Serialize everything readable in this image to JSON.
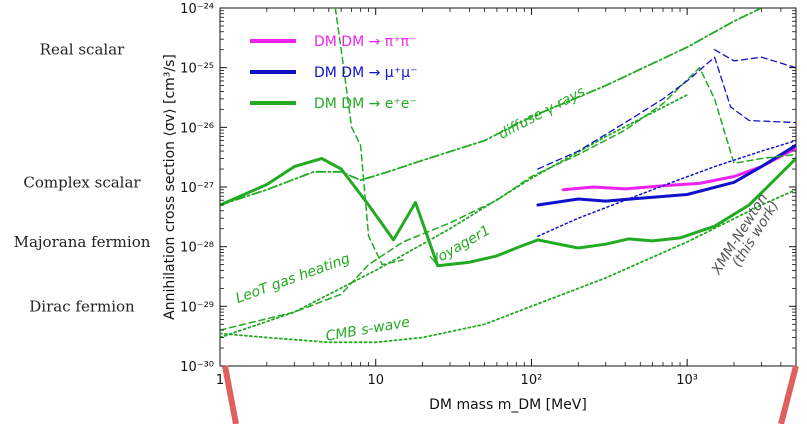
{
  "chart_data": {
    "type": "line",
    "xlabel": "DM mass m_DM [MeV]",
    "ylabel": "Annihilation cross section ⟨σv⟩ [cm³/s]",
    "x_scale": "log",
    "y_scale": "log",
    "xlim": [
      1,
      5000
    ],
    "ylim": [
      1e-30,
      1e-24
    ],
    "x_ticks": [
      {
        "v": 1,
        "label": "1"
      },
      {
        "v": 10,
        "label": "10"
      },
      {
        "v": 100,
        "label": "10²"
      },
      {
        "v": 1000,
        "label": "10³"
      }
    ],
    "y_ticks": [
      {
        "v": 1e-30,
        "label": "10⁻³⁰"
      },
      {
        "v": 1e-29,
        "label": "10⁻²⁹"
      },
      {
        "v": 1e-28,
        "label": "10⁻²⁸"
      },
      {
        "v": 1e-27,
        "label": "10⁻²⁷"
      },
      {
        "v": 1e-26,
        "label": "10⁻²⁶"
      },
      {
        "v": 1e-25,
        "label": "10⁻²⁵"
      },
      {
        "v": 1e-24,
        "label": "10⁻²⁴"
      }
    ],
    "side_labels": [
      {
        "text": "Real scalar",
        "y": 2e-25
      },
      {
        "text": "Complex scalar",
        "y": 1.2e-27
      },
      {
        "text": "Majorana fermion",
        "y": 1.2e-28
      },
      {
        "text": "Dirac fermion",
        "y": 1e-29
      }
    ],
    "legend": [
      {
        "text": "DM DM → π⁺π⁻",
        "color": "#ee22ee"
      },
      {
        "text": "DM DM → μ⁺μ⁻",
        "color": "#1111cc"
      },
      {
        "text": "DM DM → e⁺e⁻",
        "color": "#22aa22"
      }
    ],
    "annotations": [
      {
        "text": "diffuse γ-rays",
        "color": "#22aa22",
        "x": 120,
        "y": 1.5e-26,
        "angle": -28
      },
      {
        "text": "Voyager1",
        "color": "#22aa22",
        "x": 36,
        "y": 9e-29,
        "angle": -30
      },
      {
        "text": "LeoT gas heating",
        "color": "#22aa22",
        "x": 3,
        "y": 2.5e-29,
        "angle": -20
      },
      {
        "text": "CMB s-wave",
        "color": "#22aa22",
        "x": 9,
        "y": 3.5e-30,
        "angle": -10
      },
      {
        "text": "XMM-Newton",
        "color": "#555555",
        "x": 2300,
        "y": 1.5e-28,
        "angle": -58
      },
      {
        "text": "(this work)",
        "color": "#555555",
        "x": 2900,
        "y": 1.5e-28,
        "angle": -58
      }
    ],
    "series": [
      {
        "name": "DM DM → π⁺π⁻",
        "color": "#ee22ee",
        "style": "solid",
        "width": 3,
        "points": [
          [
            160,
            9e-28
          ],
          [
            250,
            1e-27
          ],
          [
            400,
            9.3e-28
          ],
          [
            700,
            1.05e-27
          ],
          [
            1200,
            1.15e-27
          ],
          [
            2000,
            1.5e-27
          ],
          [
            3000,
            2.2e-27
          ],
          [
            5000,
            4.5e-27
          ]
        ]
      },
      {
        "name": "DM DM → μ⁺μ⁻",
        "color": "#1111cc",
        "style": "solid",
        "width": 3,
        "points": [
          [
            110,
            5e-28
          ],
          [
            200,
            6.3e-28
          ],
          [
            300,
            5.8e-28
          ],
          [
            500,
            6.5e-28
          ],
          [
            1000,
            7.5e-28
          ],
          [
            2000,
            1.2e-27
          ],
          [
            3000,
            2.2e-27
          ],
          [
            5000,
            5e-27
          ]
        ]
      },
      {
        "name": "DM DM → e⁺e⁻",
        "color": "#22aa22",
        "style": "solid",
        "width": 3,
        "points": [
          [
            1,
            5e-28
          ],
          [
            2,
            1.1e-27
          ],
          [
            3,
            2.2e-27
          ],
          [
            4.5,
            3e-27
          ],
          [
            6,
            2e-27
          ],
          [
            9,
            5e-28
          ],
          [
            13,
            1.3e-28
          ],
          [
            18,
            5.5e-28
          ],
          [
            25,
            4.8e-29
          ],
          [
            40,
            5.5e-29
          ],
          [
            60,
            7e-29
          ],
          [
            80,
            9.5e-29
          ],
          [
            110,
            1.3e-28
          ],
          [
            150,
            1.1e-28
          ],
          [
            200,
            9.5e-29
          ],
          [
            300,
            1.1e-28
          ],
          [
            420,
            1.35e-28
          ],
          [
            600,
            1.25e-28
          ],
          [
            900,
            1.4e-28
          ],
          [
            1500,
            2.2e-28
          ],
          [
            2500,
            5e-28
          ],
          [
            5000,
            3e-27
          ]
        ]
      },
      {
        "name": "",
        "color": "#22aa22",
        "style": "dashdot",
        "width": 1.8,
        "points": [
          [
            1,
            5e-28
          ],
          [
            2,
            9e-28
          ],
          [
            4,
            1.8e-27
          ],
          [
            6,
            1.8e-27
          ],
          [
            8,
            1.3e-27
          ],
          [
            12,
            1.8e-27
          ],
          [
            20,
            2.8e-27
          ],
          [
            50,
            6e-27
          ],
          [
            100,
            1.5e-26
          ],
          [
            300,
            5e-26
          ],
          [
            1000,
            2.2e-25
          ],
          [
            2000,
            6e-25
          ],
          [
            3000,
            1e-24
          ]
        ]
      },
      {
        "name": "",
        "color": "#22aa22",
        "style": "dashed",
        "width": 1.5,
        "points": [
          [
            1,
            4e-30
          ],
          [
            3,
            8e-30
          ],
          [
            6,
            1.6e-29
          ],
          [
            9,
            5e-29
          ],
          [
            15,
            1.2e-28
          ],
          [
            30,
            2.5e-28
          ],
          [
            60,
            6e-28
          ],
          [
            100,
            1.5e-27
          ],
          [
            200,
            3.5e-27
          ],
          [
            400,
            9e-27
          ],
          [
            700,
            2.5e-26
          ],
          [
            1200,
            1e-25
          ],
          [
            1500,
            3e-26
          ],
          [
            2000,
            2.5e-27
          ],
          [
            3000,
            3e-27
          ],
          [
            5000,
            3.5e-27
          ]
        ]
      },
      {
        "name": "",
        "color": "#22aa22",
        "style": "dashed",
        "width": 1.5,
        "points": [
          [
            5.5,
            1e-24
          ],
          [
            6,
            2e-25
          ],
          [
            7,
            1e-26
          ],
          [
            8,
            5e-27
          ],
          [
            9,
            1.5e-28
          ],
          [
            11,
            5e-29
          ],
          [
            15,
            6e-29
          ]
        ]
      },
      {
        "name": "",
        "color": "#22aa22",
        "style": "dotted",
        "width": 1.8,
        "points": [
          [
            1,
            3e-30
          ],
          [
            3,
            8e-30
          ],
          [
            10,
            4e-29
          ],
          [
            30,
            2e-28
          ],
          [
            100,
            1.4e-27
          ],
          [
            300,
            7e-27
          ],
          [
            1000,
            3.5e-26
          ]
        ]
      },
      {
        "name": "",
        "color": "#22aa22",
        "style": "dotted",
        "width": 1.8,
        "points": [
          [
            1,
            3.5e-30
          ],
          [
            2,
            3e-30
          ],
          [
            5,
            2.5e-30
          ],
          [
            10,
            2.5e-30
          ],
          [
            20,
            3e-30
          ],
          [
            50,
            5e-30
          ],
          [
            100,
            1e-29
          ],
          [
            300,
            3e-29
          ],
          [
            1000,
            1.2e-28
          ],
          [
            3000,
            5e-28
          ],
          [
            5000,
            9e-28
          ]
        ]
      },
      {
        "name": "",
        "color": "#1111cc",
        "style": "dashed",
        "width": 1.3,
        "points": [
          [
            110,
            2e-27
          ],
          [
            200,
            4e-27
          ],
          [
            400,
            1.2e-26
          ],
          [
            700,
            3e-26
          ],
          [
            1000,
            6e-26
          ],
          [
            1500,
            1.5e-25
          ],
          [
            1900,
            2.2e-26
          ],
          [
            2500,
            1.3e-26
          ],
          [
            5000,
            1.2e-26
          ]
        ]
      },
      {
        "name": "",
        "color": "#1111cc",
        "style": "dotted",
        "width": 1.5,
        "points": [
          [
            110,
            1.5e-28
          ],
          [
            200,
            3e-28
          ],
          [
            400,
            6e-28
          ],
          [
            800,
            1.2e-27
          ],
          [
            1500,
            2.2e-27
          ],
          [
            3000,
            4e-27
          ],
          [
            5000,
            6e-27
          ]
        ]
      },
      {
        "name": "",
        "color": "#1111cc",
        "style": "dashed",
        "width": 1.3,
        "points": [
          [
            1500,
            2e-25
          ],
          [
            2000,
            1.3e-25
          ],
          [
            3000,
            1.5e-25
          ],
          [
            5000,
            1e-25
          ]
        ]
      }
    ]
  }
}
